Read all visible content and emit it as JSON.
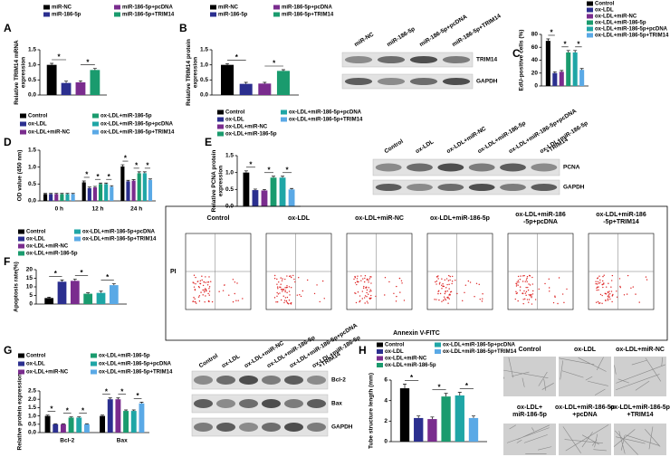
{
  "chart_data": [
    {
      "panel": "A",
      "type": "bar",
      "y_label": [
        "Relative TRIM14 mRNA",
        "expression"
      ],
      "categories": [
        null
      ],
      "series": [
        {
          "name": "miR-NC",
          "color": "#000000",
          "values": [
            1.0
          ],
          "errors": [
            0.05
          ]
        },
        {
          "name": "miR-186-5p",
          "color": "#2b2f8f",
          "values": [
            0.4
          ],
          "errors": [
            0.06
          ]
        },
        {
          "name": "miR-186-5p+pcDNA",
          "color": "#7a2c8e",
          "values": [
            0.42
          ],
          "errors": [
            0.05
          ]
        },
        {
          "name": "miR-186-5p+TRIM14",
          "color": "#1a9b6e",
          "values": [
            0.83
          ],
          "errors": [
            0.05
          ]
        }
      ],
      "ylim": [
        0,
        1.5
      ],
      "yticks": [
        {
          "value": 0,
          "label": "0.0"
        },
        {
          "value": 0.5,
          "label": "0.5"
        },
        {
          "value": 1,
          "label": "1.0"
        },
        {
          "value": 1.5,
          "label": "1.5"
        }
      ],
      "significance": [
        {
          "label": "*",
          "group": 0,
          "pair": [
            0,
            1
          ]
        },
        {
          "label": "*",
          "group": 0,
          "pair": [
            2,
            3
          ]
        }
      ]
    },
    {
      "panel": "B",
      "type": "bar",
      "y_label": [
        "Relative TRIM14 protein",
        "expression"
      ],
      "categories": [
        null
      ],
      "series": [
        {
          "name": "miR-NC",
          "color": "#000000",
          "values": [
            1.0
          ],
          "errors": [
            0.04
          ]
        },
        {
          "name": "miR-186-5p",
          "color": "#2b2f8f",
          "values": [
            0.37
          ],
          "errors": [
            0.05
          ]
        },
        {
          "name": "miR-186-5p+pcDNA",
          "color": "#7a2c8e",
          "values": [
            0.38
          ],
          "errors": [
            0.04
          ]
        },
        {
          "name": "miR-186-5p+TRIM14",
          "color": "#1a9b6e",
          "values": [
            0.8
          ],
          "errors": [
            0.04
          ]
        }
      ],
      "ylim": [
        0,
        1.5
      ],
      "yticks": [
        {
          "value": 0,
          "label": "0.0"
        },
        {
          "value": 0.5,
          "label": "0.5"
        },
        {
          "value": 1,
          "label": "1.0"
        },
        {
          "value": 1.5,
          "label": "1.5"
        }
      ],
      "significance": [
        {
          "label": "*",
          "group": 0,
          "pair": [
            0,
            1
          ]
        },
        {
          "label": "*",
          "group": 0,
          "pair": [
            2,
            3
          ]
        }
      ]
    },
    {
      "panel": "C",
      "type": "bar",
      "y_label": [
        "EdU-positive cells (%)"
      ],
      "categories": [
        null
      ],
      "series": [
        {
          "name": "Control",
          "color": "#000000",
          "values": [
            70
          ],
          "errors": [
            3
          ]
        },
        {
          "name": "ox-LDL",
          "color": "#2b2f8f",
          "values": [
            20
          ],
          "errors": [
            2
          ]
        },
        {
          "name": "ox-LDL+miR-NC",
          "color": "#7a2c8e",
          "values": [
            22
          ],
          "errors": [
            2
          ]
        },
        {
          "name": "ox-LDL+miR-186-5p",
          "color": "#1a9b6e",
          "values": [
            52
          ],
          "errors": [
            3
          ]
        },
        {
          "name": "ox-LDL+miR-186-5p+pcDNA",
          "color": "#1fa6a6",
          "values": [
            52
          ],
          "errors": [
            3
          ]
        },
        {
          "name": "ox-LDL+miR-186-5p+TRIM14",
          "color": "#5aa9e6",
          "values": [
            25
          ],
          "errors": [
            2
          ]
        }
      ],
      "ylim": [
        0,
        80
      ],
      "yticks": [
        0,
        20,
        40,
        60,
        80
      ],
      "significance": [
        {
          "label": "*",
          "group": 0,
          "pair": [
            0,
            1
          ]
        },
        {
          "label": "*",
          "group": 0,
          "pair": [
            2,
            3
          ]
        },
        {
          "label": "*",
          "group": 0,
          "pair": [
            4,
            5
          ]
        }
      ]
    },
    {
      "panel": "D",
      "type": "bar",
      "y_label": [
        "OD value (450 nm)"
      ],
      "categories": [
        "0 h",
        "12 h",
        "24 h"
      ],
      "series": [
        {
          "name": "Control",
          "color": "#000000",
          "values": [
            0.2,
            0.55,
            1.02
          ],
          "errors": [
            0.02,
            0.04,
            0.05
          ]
        },
        {
          "name": "ox-LDL",
          "color": "#2b2f8f",
          "values": [
            0.2,
            0.38,
            0.58
          ],
          "errors": [
            0.02,
            0.03,
            0.03
          ]
        },
        {
          "name": "ox-LDL+miR-NC",
          "color": "#7a2c8e",
          "values": [
            0.2,
            0.4,
            0.6
          ],
          "errors": [
            0.02,
            0.03,
            0.03
          ]
        },
        {
          "name": "ox-LDL+miR-186-5p",
          "color": "#1a9b6e",
          "values": [
            0.2,
            0.5,
            0.82
          ],
          "errors": [
            0.02,
            0.03,
            0.04
          ]
        },
        {
          "name": "ox-LDL+miR-186-5p+pcDNA",
          "color": "#1fa6a6",
          "values": [
            0.2,
            0.5,
            0.82
          ],
          "errors": [
            0.02,
            0.03,
            0.04
          ]
        },
        {
          "name": "ox-LDL+miR-186-5p+TRIM14",
          "color": "#5aa9e6",
          "values": [
            0.2,
            0.42,
            0.62
          ],
          "errors": [
            0.02,
            0.03,
            0.03
          ]
        }
      ],
      "ylim": [
        0,
        1.5
      ],
      "yticks": [
        {
          "value": 0,
          "label": "0.0"
        },
        {
          "value": 0.5,
          "label": "0.5"
        },
        {
          "value": 1,
          "label": "1.0"
        },
        {
          "value": 1.5,
          "label": "1.5"
        }
      ],
      "significance": [
        {
          "label": "*",
          "group": 1,
          "pair": [
            0,
            1
          ]
        },
        {
          "label": "*",
          "group": 1,
          "pair": [
            2,
            3
          ]
        },
        {
          "label": "*",
          "group": 1,
          "pair": [
            4,
            5
          ]
        },
        {
          "label": "*",
          "group": 2,
          "pair": [
            0,
            1
          ]
        },
        {
          "label": "*",
          "group": 2,
          "pair": [
            2,
            3
          ]
        },
        {
          "label": "*",
          "group": 2,
          "pair": [
            4,
            5
          ]
        }
      ]
    },
    {
      "panel": "E",
      "type": "bar",
      "y_label": [
        "Relative PCNA protein",
        "expression"
      ],
      "categories": [
        null
      ],
      "series": [
        {
          "name": "Control",
          "color": "#000000",
          "values": [
            1.0
          ],
          "errors": [
            0.05
          ]
        },
        {
          "name": "ox-LDL",
          "color": "#2b2f8f",
          "values": [
            0.48
          ],
          "errors": [
            0.03
          ]
        },
        {
          "name": "ox-LDL+miR-NC",
          "color": "#7a2c8e",
          "values": [
            0.47
          ],
          "errors": [
            0.03
          ]
        },
        {
          "name": "ox-LDL+miR-186-5p",
          "color": "#1a9b6e",
          "values": [
            0.85
          ],
          "errors": [
            0.04
          ]
        },
        {
          "name": "ox-LDL+miR-186-5p+pcDNA",
          "color": "#1fa6a6",
          "values": [
            0.85
          ],
          "errors": [
            0.04
          ]
        },
        {
          "name": "ox-LDL+miR-186-5p+TRIM14",
          "color": "#5aa9e6",
          "values": [
            0.5
          ],
          "errors": [
            0.03
          ]
        }
      ],
      "ylim": [
        0,
        1.5
      ],
      "yticks": [
        {
          "value": 0,
          "label": "0.0"
        },
        {
          "value": 0.5,
          "label": "0.5"
        },
        {
          "value": 1,
          "label": "1.0"
        },
        {
          "value": 1.5,
          "label": "1.5"
        }
      ],
      "significance": [
        {
          "label": "*",
          "group": 0,
          "pair": [
            0,
            1
          ]
        },
        {
          "label": "*",
          "group": 0,
          "pair": [
            2,
            3
          ]
        },
        {
          "label": "*",
          "group": 0,
          "pair": [
            4,
            5
          ]
        }
      ]
    },
    {
      "panel": "F",
      "type": "bar",
      "y_label": [
        "Apoptosis rate(%)"
      ],
      "categories": [
        null
      ],
      "series": [
        {
          "name": "Control",
          "color": "#000000",
          "values": [
            3.5
          ],
          "errors": [
            0.5
          ]
        },
        {
          "name": "ox-LDL",
          "color": "#2b2f8f",
          "values": [
            13
          ],
          "errors": [
            1
          ]
        },
        {
          "name": "ox-LDL+miR-NC",
          "color": "#7a2c8e",
          "values": [
            13.5
          ],
          "errors": [
            1
          ]
        },
        {
          "name": "ox-LDL+miR-186-5p",
          "color": "#1a9b6e",
          "values": [
            6
          ],
          "errors": [
            0.5
          ]
        },
        {
          "name": "ox-LDL+miR-186-5p+pcDNA",
          "color": "#1fa6a6",
          "values": [
            6.5
          ],
          "errors": [
            1
          ]
        },
        {
          "name": "ox-LDL+miR-186-5p+TRIM14",
          "color": "#5aa9e6",
          "values": [
            11
          ],
          "errors": [
            0.8
          ]
        }
      ],
      "ylim": [
        0,
        20
      ],
      "yticks": [
        0,
        5,
        10,
        15,
        20
      ],
      "significance": [
        {
          "label": "*",
          "group": 0,
          "pair": [
            0,
            1
          ]
        },
        {
          "label": "*",
          "group": 0,
          "pair": [
            2,
            3
          ]
        },
        {
          "label": "*",
          "group": 0,
          "pair": [
            4,
            5
          ]
        }
      ]
    },
    {
      "panel": "G",
      "type": "bar",
      "y_label": [
        "Relative protein expression"
      ],
      "categories": [
        "Bcl-2",
        "Bax"
      ],
      "series": [
        {
          "name": "Control",
          "color": "#000000",
          "values": [
            1.0,
            1.0
          ],
          "errors": [
            0.05,
            0.05
          ]
        },
        {
          "name": "ox-LDL",
          "color": "#2b2f8f",
          "values": [
            0.5,
            2.0
          ],
          "errors": [
            0.03,
            0.08
          ]
        },
        {
          "name": "ox-LDL+miR-NC",
          "color": "#7a2c8e",
          "values": [
            0.5,
            2.0
          ],
          "errors": [
            0.03,
            0.08
          ]
        },
        {
          "name": "ox-LDL+miR-186-5p",
          "color": "#1a9b6e",
          "values": [
            0.9,
            1.3
          ],
          "errors": [
            0.04,
            0.06
          ]
        },
        {
          "name": "ox-LDL+miR-186-5p+pcDNA",
          "color": "#1fa6a6",
          "values": [
            0.9,
            1.3
          ],
          "errors": [
            0.04,
            0.06
          ]
        },
        {
          "name": "ox-LDL+miR-186-5p+TRIM14",
          "color": "#5aa9e6",
          "values": [
            0.5,
            1.75
          ],
          "errors": [
            0.03,
            0.07
          ]
        }
      ],
      "ylim": [
        0,
        2.5
      ],
      "yticks": [
        {
          "value": 0,
          "label": "0.0"
        },
        {
          "value": 0.5,
          "label": "0.5"
        },
        {
          "value": 1,
          "label": "1.0"
        },
        {
          "value": 1.5,
          "label": "1.5"
        },
        {
          "value": 2,
          "label": "2.0"
        },
        {
          "value": 2.5,
          "label": "2.5"
        }
      ],
      "significance": [
        {
          "label": "*",
          "group": 0,
          "pair": [
            0,
            1
          ]
        },
        {
          "label": "*",
          "group": 0,
          "pair": [
            2,
            3
          ]
        },
        {
          "label": "*",
          "group": 0,
          "pair": [
            4,
            5
          ]
        },
        {
          "label": "*",
          "group": 1,
          "pair": [
            0,
            1
          ]
        },
        {
          "label": "*",
          "group": 1,
          "pair": [
            2,
            3
          ]
        },
        {
          "label": "*",
          "group": 1,
          "pair": [
            4,
            5
          ]
        }
      ]
    },
    {
      "panel": "H",
      "type": "bar",
      "y_label": [
        "Tube structure length (mm)"
      ],
      "categories": [
        null
      ],
      "series": [
        {
          "name": "Control",
          "color": "#000000",
          "values": [
            5.2
          ],
          "errors": [
            0.4
          ]
        },
        {
          "name": "ox-LDL",
          "color": "#2b2f8f",
          "values": [
            2.3
          ],
          "errors": [
            0.2
          ]
        },
        {
          "name": "ox-LDL+miR-NC",
          "color": "#7a2c8e",
          "values": [
            2.2
          ],
          "errors": [
            0.2
          ]
        },
        {
          "name": "ox-LDL+miR-186-5p",
          "color": "#1a9b6e",
          "values": [
            4.4
          ],
          "errors": [
            0.3
          ]
        },
        {
          "name": "ox-LDL+miR-186-5p+pcDNA",
          "color": "#1fa6a6",
          "values": [
            4.5
          ],
          "errors": [
            0.3
          ]
        },
        {
          "name": "ox-LDL+miR-186-5p+TRIM14",
          "color": "#5aa9e6",
          "values": [
            2.3
          ],
          "errors": [
            0.2
          ]
        }
      ],
      "ylim": [
        0,
        6
      ],
      "yticks": [
        0,
        2,
        4,
        6
      ],
      "significance": [
        {
          "label": "*",
          "group": 0,
          "pair": [
            0,
            1
          ]
        },
        {
          "label": "*",
          "group": 0,
          "pair": [
            2,
            3
          ]
        },
        {
          "label": "*",
          "group": 0,
          "pair": [
            4,
            5
          ]
        }
      ]
    }
  ],
  "blots": [
    {
      "lanes": [
        [
          "miR-NC"
        ],
        [
          "miR-186-5p"
        ],
        [
          "miR-186-5p+pcDNA"
        ],
        [
          "miR-186-5p+TRIM14"
        ]
      ],
      "bands": [
        "TRIM14",
        "GAPDH"
      ]
    },
    {
      "lanes": [
        [
          "Control"
        ],
        [
          "ox-LDL"
        ],
        [
          "ox-LDL+miR-NC"
        ],
        [
          "ox-LDL+miR-186-5p"
        ],
        [
          "ox-LDL+miR-186-5p+pcDNA"
        ],
        [
          "ox-LDL+miR-186-5p",
          "+TRIM14"
        ]
      ],
      "bands": [
        "PCNA",
        "GAPDH"
      ]
    },
    {
      "lanes": [
        [
          "Control"
        ],
        [
          "ox-LDL"
        ],
        [
          "ox-LDL+miR-NC"
        ],
        [
          "ox-LDL+miR-186-5p"
        ],
        [
          "ox-LDL+miR-186-5p+pcDNA"
        ],
        [
          "ox-LDL+miR-186-5p",
          "+TRIM14"
        ]
      ],
      "bands": [
        "Bcl-2",
        "Bax",
        "GAPDH"
      ]
    }
  ],
  "flow": {
    "titles": [
      [
        "Control"
      ],
      [
        "ox-LDL"
      ],
      [
        "ox-LDL+miR-NC"
      ],
      [
        "ox-LDL+miR-186-5p"
      ],
      [
        "ox-LDL+miR-186",
        "-5p+pcDNA"
      ],
      [
        "ox-LDL+miR-186",
        "-5p+TRIM14"
      ]
    ],
    "y_label": "PI",
    "x_label": "Annexin V-FITC"
  },
  "tube_images": {
    "captions": [
      [
        "Control"
      ],
      [
        "ox-LDL"
      ],
      [
        "ox-LDL+miR-NC"
      ],
      [
        "ox-LDL+",
        "miR-186-5p"
      ],
      [
        "ox-LDL+miR-186-5p",
        "+pcDNA"
      ],
      [
        "ox-LDL+miR-186-5p",
        "+TRIM14"
      ]
    ]
  }
}
